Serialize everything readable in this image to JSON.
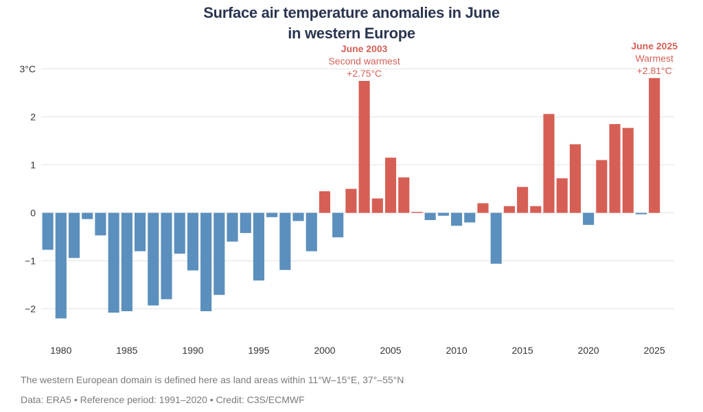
{
  "chart_data": {
    "type": "bar",
    "title_line1": "Surface air temperature anomalies in June",
    "title_line2": "in western Europe",
    "x": [
      1979,
      1980,
      1981,
      1982,
      1983,
      1984,
      1985,
      1986,
      1987,
      1988,
      1989,
      1990,
      1991,
      1992,
      1993,
      1994,
      1995,
      1996,
      1997,
      1998,
      1999,
      2000,
      2001,
      2002,
      2003,
      2004,
      2005,
      2006,
      2007,
      2008,
      2009,
      2010,
      2011,
      2012,
      2013,
      2014,
      2015,
      2016,
      2017,
      2018,
      2019,
      2020,
      2021,
      2022,
      2023,
      2024,
      2025
    ],
    "values": [
      -0.77,
      -2.2,
      -0.94,
      -0.13,
      -0.47,
      -2.08,
      -2.05,
      -0.8,
      -1.93,
      -1.8,
      -0.85,
      -1.2,
      -2.05,
      -1.71,
      -0.6,
      -0.42,
      -1.41,
      -0.09,
      -1.19,
      -0.17,
      -0.8,
      0.45,
      -0.51,
      0.5,
      2.75,
      0.3,
      1.15,
      0.74,
      0.02,
      -0.15,
      -0.06,
      -0.27,
      -0.2,
      0.2,
      -1.06,
      0.14,
      0.54,
      0.14,
      2.06,
      0.72,
      1.43,
      -0.25,
      1.1,
      1.85,
      1.77,
      -0.03,
      2.81
    ],
    "xticks": [
      1980,
      1985,
      1990,
      1995,
      2000,
      2005,
      2010,
      2015,
      2020,
      2025
    ],
    "yticks": [
      {
        "value": -2,
        "label": "−2"
      },
      {
        "value": -1,
        "label": "−1"
      },
      {
        "value": 0,
        "label": "0"
      },
      {
        "value": 1,
        "label": "1"
      },
      {
        "value": 2,
        "label": "2"
      },
      {
        "value": 3,
        "label": "3°C"
      }
    ],
    "ylim": [
      -2.45,
      3.15
    ],
    "xlim": [
      1978.5,
      2026.5
    ],
    "xlabel": "",
    "ylabel": "",
    "colors": {
      "positive": "#d65f55",
      "negative": "#5b8fbd",
      "grid": "#e3e3e3",
      "axis_text": "#333333",
      "annotation": "#d65f55"
    },
    "annotations": [
      {
        "year": 2003,
        "lines": [
          "June 2003",
          "Second warmest",
          "+2.75°C"
        ]
      },
      {
        "year": 2025,
        "lines": [
          "June 2025",
          "Warmest",
          "+2.81°C"
        ]
      }
    ]
  },
  "footnotes": {
    "domain": "The western European domain is defined here as land areas within 11°W–15°E, 37°–55°N",
    "credit": "Data: ERA5 • Reference period: 1991–2020 • Credit: C3S/ECMWF"
  }
}
